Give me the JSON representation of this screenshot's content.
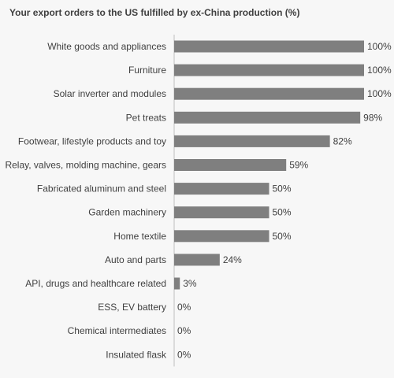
{
  "chart_data": {
    "type": "bar",
    "orientation": "horizontal",
    "title": "Your export orders to the US fulfilled by ex-China production (%)",
    "categories": [
      "White goods and appliances",
      "Furniture",
      "Solar inverter and modules",
      "Pet treats",
      "Footwear, lifestyle products and toy",
      "Relay, valves, molding machine, gears",
      "Fabricated aluminum and steel",
      "Garden machinery",
      "Home textile",
      "Auto and parts",
      "API, drugs and healthcare related",
      "ESS, EV battery",
      "Chemical intermediates",
      "Insulated flask"
    ],
    "values": [
      100,
      100,
      100,
      98,
      82,
      59,
      50,
      50,
      50,
      24,
      3,
      0,
      0,
      0
    ],
    "data_labels": [
      "100%",
      "100%",
      "100%",
      "98%",
      "82%",
      "59%",
      "50%",
      "50%",
      "50%",
      "24%",
      "3%",
      "0%",
      "0%",
      "0%"
    ],
    "xlim": [
      0,
      100
    ],
    "grid": false,
    "legend": "none",
    "bar_color": "#7f7f7f"
  }
}
